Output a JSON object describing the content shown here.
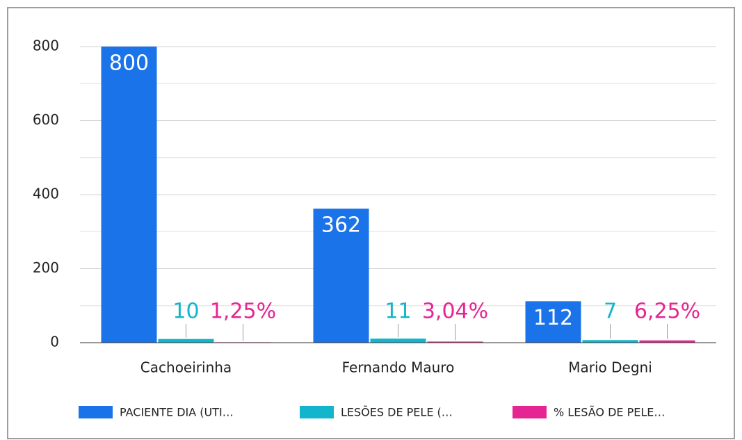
{
  "chart_data": {
    "type": "bar",
    "categories": [
      "Cachoeirinha",
      "Fernando Mauro",
      "Mario Degni"
    ],
    "series": [
      {
        "name": "PACIENTE DIA (UTI…",
        "color": "#1a73e8",
        "values": [
          800,
          362,
          112
        ]
      },
      {
        "name": "LESÕES DE PELE (…",
        "color": "#12b5cb",
        "values": [
          10,
          11,
          7
        ]
      },
      {
        "name": "% LESÃO DE PELE…",
        "color": "#e52592",
        "values": [
          1.25,
          3.04,
          6.25
        ],
        "value_labels": [
          "1,25%",
          "3,04%",
          "6,25%"
        ]
      }
    ],
    "ylim": [
      0,
      800
    ],
    "yticks": [
      0,
      200,
      400,
      600,
      800
    ],
    "minor_yticks": [
      100,
      300,
      500,
      700
    ],
    "grid": true,
    "legend": "bottom"
  }
}
